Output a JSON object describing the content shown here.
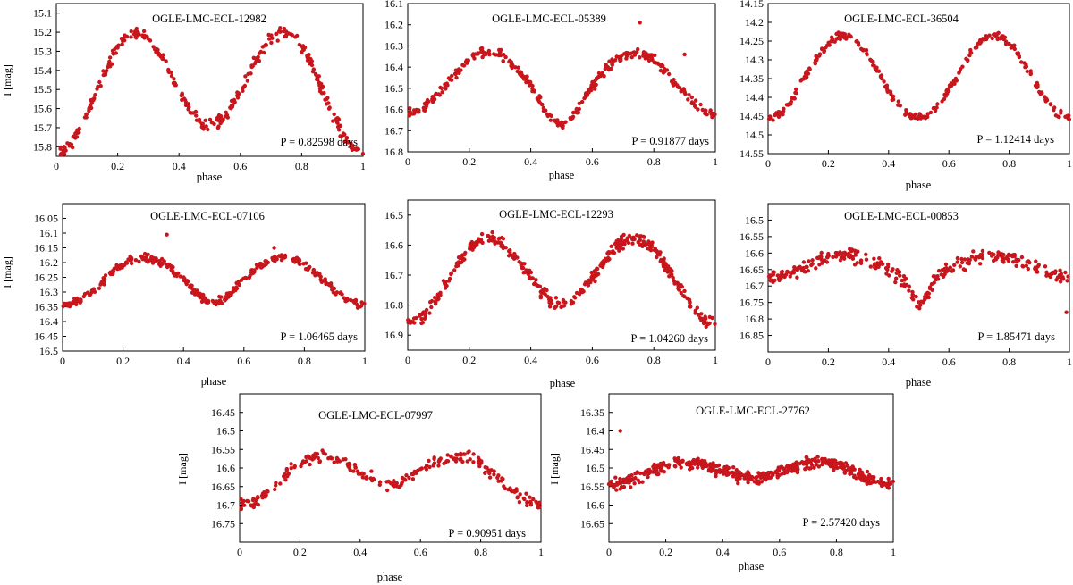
{
  "colors": {
    "point": "#c8161d",
    "axis": "#000000",
    "text": "#000000"
  },
  "chart_data": [
    {
      "type": "scatter",
      "title": "OGLE-LMC-ECL-12982",
      "period": "P = 0.82598 days",
      "xlabel": "phase",
      "ylabel": "I [mag]",
      "xlim": [
        0,
        1
      ],
      "ylim": [
        15.05,
        15.85
      ],
      "inverted_y": true,
      "xticks": [
        0,
        0.2,
        0.4,
        0.6,
        0.8,
        1
      ],
      "xtick_labels": [
        "0",
        "0.2",
        "0.4",
        "0.6",
        "0.8",
        "1"
      ],
      "yticks": [
        15.1,
        15.2,
        15.3,
        15.4,
        15.5,
        15.6,
        15.7,
        15.8
      ],
      "ytick_labels": [
        "15.1",
        "15.2",
        "15.3",
        "15.4",
        "15.5",
        "15.6",
        "15.7",
        "15.8"
      ],
      "model": {
        "mean": 15.48,
        "amp1": 0.07,
        "amp2": 0.28,
        "ecl": 0,
        "eclw": 0.05
      },
      "noise": 0.018,
      "npoints": 330,
      "outliers": []
    },
    {
      "type": "scatter",
      "title": "OGLE-LMC-ECL-05389",
      "period": "P = 0.91877 days",
      "xlabel": "phase",
      "ylabel": "",
      "xlim": [
        0,
        1
      ],
      "ylim": [
        16.1,
        16.8
      ],
      "inverted_y": true,
      "xticks": [
        0,
        0.2,
        0.4,
        0.6,
        0.8,
        1
      ],
      "xtick_labels": [
        "0",
        "0.2",
        "0.4",
        "0.6",
        "0.8",
        "1"
      ],
      "yticks": [
        16.1,
        16.2,
        16.3,
        16.4,
        16.5,
        16.6,
        16.7,
        16.8
      ],
      "ytick_labels": [
        "16.1",
        "16.2",
        "16.3",
        "16.4",
        "16.5",
        "16.6",
        "16.7",
        "16.8"
      ],
      "model": {
        "mean": 16.46,
        "amp1": 0.03,
        "amp2": 0.13,
        "ecl": 0.11,
        "eclw": 0.05
      },
      "noise": 0.014,
      "npoints": 330,
      "outliers": [
        [
          0.755,
          16.19
        ],
        [
          0.9,
          16.34
        ]
      ]
    },
    {
      "type": "scatter",
      "title": "OGLE-LMC-ECL-36504",
      "period": "P = 1.12414 days",
      "xlabel": "phase",
      "ylabel": "",
      "xlim": [
        0,
        1
      ],
      "ylim": [
        14.15,
        14.55
      ],
      "inverted_y": true,
      "xticks": [
        0,
        0.2,
        0.4,
        0.6,
        0.8,
        1
      ],
      "xtick_labels": [
        "0",
        "0.2",
        "0.4",
        "0.6",
        "0.8",
        "1"
      ],
      "yticks": [
        14.15,
        14.2,
        14.25,
        14.3,
        14.35,
        14.4,
        14.45,
        14.5,
        14.55
      ],
      "ytick_labels": [
        "14.15",
        "14.2",
        "14.25",
        "14.3",
        "14.35",
        "14.4",
        "14.45",
        "14.5",
        "14.55"
      ],
      "model": {
        "mean": 14.345,
        "amp1": 0.0,
        "amp2": 0.11,
        "ecl": 0,
        "eclw": 0.05
      },
      "noise": 0.006,
      "npoints": 300,
      "outliers": []
    },
    {
      "type": "scatter",
      "title": "OGLE-LMC-ECL-07106",
      "period": "P = 1.06465 days",
      "xlabel": "phase",
      "ylabel": "I [mag]",
      "xlim": [
        0,
        1
      ],
      "ylim": [
        16.0,
        16.5
      ],
      "inverted_y": true,
      "xticks": [
        0,
        0.2,
        0.4,
        0.6,
        0.8,
        1
      ],
      "xtick_labels": [
        "0",
        "0.2",
        "0.4",
        "0.6",
        "0.8",
        "1"
      ],
      "yticks": [
        16.05,
        16.1,
        16.15,
        16.2,
        16.25,
        16.3,
        16.35,
        16.4,
        16.45,
        16.5
      ],
      "ytick_labels": [
        "16.05",
        "16.1",
        "16.15",
        "16.2",
        "16.25",
        "16.3",
        "16.35",
        "16.4",
        "16.45",
        "16.5"
      ],
      "model": {
        "mean": 16.25,
        "amp1": 0.03,
        "amp2": 0.065,
        "ecl": 0.05,
        "eclw": 0.06
      },
      "noise": 0.008,
      "npoints": 330,
      "outliers": [
        [
          0.345,
          16.105
        ],
        [
          0.7,
          16.15
        ]
      ]
    },
    {
      "type": "scatter",
      "title": "OGLE-LMC-ECL-12293",
      "period": "P = 1.04260 days",
      "xlabel": "phase",
      "ylabel": "",
      "xlim": [
        0,
        1
      ],
      "ylim": [
        16.45,
        16.95
      ],
      "inverted_y": true,
      "xticks": [
        0,
        0.2,
        0.4,
        0.6,
        0.8,
        1
      ],
      "xtick_labels": [
        "0",
        "0.2",
        "0.4",
        "0.6",
        "0.8",
        "1"
      ],
      "yticks": [
        16.5,
        16.6,
        16.7,
        16.8,
        16.9
      ],
      "ytick_labels": [
        "16.5",
        "16.6",
        "16.7",
        "16.8",
        "16.9"
      ],
      "model": {
        "mean": 16.7,
        "amp1": 0.04,
        "amp2": 0.12,
        "ecl": 0.02,
        "eclw": 0.05
      },
      "noise": 0.012,
      "npoints": 400,
      "outliers": []
    },
    {
      "type": "scatter",
      "title": "OGLE-LMC-ECL-00853",
      "period": "P = 1.85471 days",
      "xlabel": "phase",
      "ylabel": "",
      "xlim": [
        0,
        1
      ],
      "ylim": [
        16.45,
        16.9
      ],
      "inverted_y": true,
      "xticks": [
        0,
        0.2,
        0.4,
        0.6,
        0.8,
        1
      ],
      "xtick_labels": [
        "0",
        "0.2",
        "0.4",
        "0.6",
        "0.8",
        "1"
      ],
      "yticks": [
        16.5,
        16.55,
        16.6,
        16.65,
        16.7,
        16.75,
        16.8,
        16.85
      ],
      "ytick_labels": [
        "16.5",
        "16.55",
        "16.6",
        "16.65",
        "16.7",
        "16.75",
        "16.8",
        "16.85"
      ],
      "model": {
        "mean": 16.64,
        "amp1": 0.0,
        "amp2": 0.035,
        "ecl": 0.08,
        "eclw": 0.03
      },
      "noise": 0.012,
      "npoints": 300,
      "outliers": [
        [
          0.99,
          16.78
        ]
      ]
    },
    {
      "type": "scatter",
      "title": "OGLE-LMC-ECL-07997",
      "period": "P = 0.90951 days",
      "xlabel": "phase",
      "ylabel": "I [mag]",
      "xlim": [
        0,
        1
      ],
      "ylim": [
        16.4,
        16.8
      ],
      "inverted_y": true,
      "xticks": [
        0,
        0.2,
        0.4,
        0.6,
        0.8,
        1
      ],
      "xtick_labels": [
        "0",
        "0.2",
        "0.4",
        "0.6",
        "0.8",
        "1"
      ],
      "yticks": [
        16.45,
        16.5,
        16.55,
        16.6,
        16.65,
        16.7,
        16.75
      ],
      "ytick_labels": [
        "16.45",
        "16.5",
        "16.55",
        "16.6",
        "16.65",
        "16.7",
        "16.75"
      ],
      "model": {
        "mean": 16.62,
        "amp1": 0.03,
        "amp2": 0.05,
        "ecl": 0,
        "eclw": 0.05
      },
      "noise": 0.01,
      "npoints": 250,
      "outliers": []
    },
    {
      "type": "scatter",
      "title": "OGLE-LMC-ECL-27762",
      "period": "P = 2.57420 days",
      "xlabel": "phase",
      "ylabel": "I [mag]",
      "xlim": [
        0,
        1
      ],
      "ylim": [
        16.3,
        16.7
      ],
      "inverted_y": true,
      "xticks": [
        0,
        0.2,
        0.4,
        0.6,
        0.8,
        1
      ],
      "xtick_labels": [
        "0",
        "0.2",
        "0.4",
        "0.6",
        "0.8",
        "1"
      ],
      "yticks": [
        16.35,
        16.4,
        16.45,
        16.5,
        16.55,
        16.6,
        16.65
      ],
      "ytick_labels": [
        "16.35",
        "16.4",
        "16.45",
        "16.5",
        "16.55",
        "16.6",
        "16.65"
      ],
      "model": {
        "mean": 16.51,
        "amp1": 0.01,
        "amp2": 0.025,
        "ecl": 0,
        "eclw": 0.05
      },
      "noise": 0.009,
      "npoints": 450,
      "outliers": [
        [
          0.04,
          16.4
        ]
      ]
    }
  ]
}
